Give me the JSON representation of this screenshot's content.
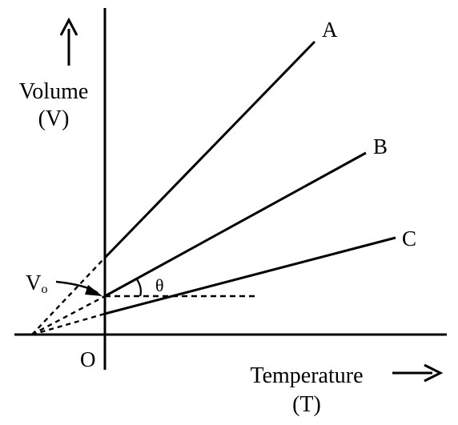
{
  "y_axis": {
    "label_line1": "Volume",
    "label_line2": "(V)"
  },
  "x_axis": {
    "label_line1": "Temperature",
    "label_line2": "(T)"
  },
  "origin_label": "O",
  "v0_label": {
    "main": "V",
    "sub": "o"
  },
  "angle_label": "θ",
  "lines": [
    {
      "label": "A"
    },
    {
      "label": "B"
    },
    {
      "label": "C"
    }
  ]
}
